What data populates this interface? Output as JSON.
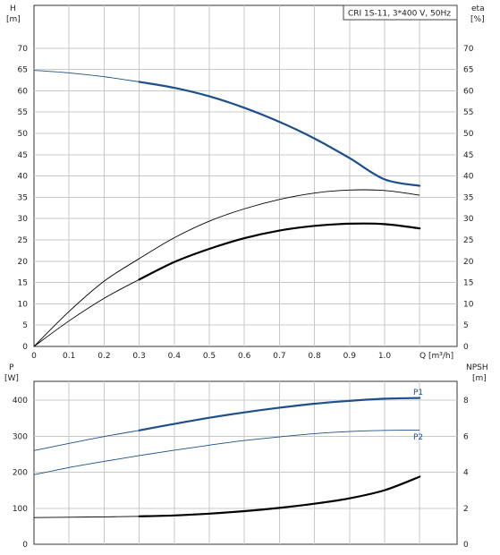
{
  "title": "CRI 1S-11, 3*400 V, 50Hz",
  "colors": {
    "blue": "#1c4f8c",
    "black": "#000000",
    "grid": "#c8c8c8"
  },
  "chart_data": [
    {
      "type": "line",
      "title": "CRI 1S-11, 3*400 V, 50Hz",
      "xlabel": "Q [m³/h]",
      "xlim": [
        0,
        1.1
      ],
      "x_ticks": [
        "0",
        "0.1",
        "0.2",
        "0.3",
        "0.4",
        "0.5",
        "0.6",
        "0.7",
        "0.8",
        "0.9",
        "1.0"
      ],
      "ylabel_left": [
        "H",
        "[m]"
      ],
      "ylim_left": [
        0,
        75
      ],
      "y_ticks_left": [
        "0",
        "5",
        "10",
        "15",
        "20",
        "25",
        "30",
        "35",
        "40",
        "45",
        "50",
        "55",
        "60",
        "65",
        "70"
      ],
      "ylabel_right": [
        "eta",
        "[%]"
      ],
      "ylim_right": [
        0,
        75
      ],
      "y_ticks_right": [
        "0",
        "5",
        "10",
        "15",
        "20",
        "25",
        "30",
        "35",
        "40",
        "45",
        "50",
        "55",
        "60",
        "65",
        "70"
      ],
      "grid": true,
      "series": [
        {
          "axis": "left",
          "color": "#1c4f8c",
          "points": [
            [
              0,
              64.8
            ],
            [
              0.1,
              64.2
            ],
            [
              0.2,
              63.3
            ],
            [
              0.3,
              62.1
            ],
            [
              0.4,
              60.7
            ],
            [
              0.5,
              58.7
            ],
            [
              0.6,
              56.0
            ],
            [
              0.7,
              52.7
            ],
            [
              0.8,
              48.8
            ],
            [
              0.9,
              44.2
            ],
            [
              1.0,
              39.2
            ],
            [
              1.1,
              37.7
            ]
          ],
          "bold_from": 0.3
        },
        {
          "axis": "right",
          "color": "#000000",
          "points": [
            [
              0,
              0
            ],
            [
              0.1,
              8.2
            ],
            [
              0.2,
              15.3
            ],
            [
              0.3,
              20.6
            ],
            [
              0.4,
              25.5
            ],
            [
              0.5,
              29.4
            ],
            [
              0.6,
              32.3
            ],
            [
              0.7,
              34.5
            ],
            [
              0.8,
              36.0
            ],
            [
              0.9,
              36.7
            ],
            [
              1.0,
              36.6
            ],
            [
              1.1,
              35.5
            ]
          ],
          "bold_from": 2
        },
        {
          "axis": "right",
          "color": "#000000",
          "points": [
            [
              0,
              0
            ],
            [
              0.1,
              6.0
            ],
            [
              0.2,
              11.3
            ],
            [
              0.3,
              15.7
            ],
            [
              0.4,
              19.8
            ],
            [
              0.5,
              22.9
            ],
            [
              0.6,
              25.4
            ],
            [
              0.7,
              27.2
            ],
            [
              0.8,
              28.3
            ],
            [
              0.9,
              28.8
            ],
            [
              1.0,
              28.7
            ],
            [
              1.1,
              27.7
            ]
          ],
          "bold_from": 0.3
        }
      ]
    },
    {
      "type": "line",
      "xlim": [
        0,
        1.1
      ],
      "ylabel_left": [
        "P",
        "[W]"
      ],
      "ylim_left": [
        0,
        450
      ],
      "y_ticks_left": [
        "0",
        "100",
        "200",
        "300",
        "400"
      ],
      "ylabel_right": [
        "NPSH",
        "[m]"
      ],
      "ylim_right": [
        0,
        9
      ],
      "y_ticks_right": [
        "0",
        "2",
        "4",
        "6",
        "8"
      ],
      "grid": true,
      "series": [
        {
          "name": "P1",
          "axis": "left",
          "color": "#1c4f8c",
          "points": [
            [
              0,
              260
            ],
            [
              0.1,
              280
            ],
            [
              0.2,
              299
            ],
            [
              0.3,
              316
            ],
            [
              0.4,
              334
            ],
            [
              0.5,
              351
            ],
            [
              0.6,
              366
            ],
            [
              0.7,
              379
            ],
            [
              0.8,
              390
            ],
            [
              0.9,
              398
            ],
            [
              1.0,
              404
            ],
            [
              1.1,
              406
            ]
          ],
          "bold_from": 0.3
        },
        {
          "name": "P2",
          "axis": "left",
          "color": "#1c4f8c",
          "points": [
            [
              0,
              193
            ],
            [
              0.1,
              213
            ],
            [
              0.2,
              230
            ],
            [
              0.3,
              246
            ],
            [
              0.4,
              261
            ],
            [
              0.5,
              275
            ],
            [
              0.6,
              288
            ],
            [
              0.7,
              298
            ],
            [
              0.8,
              307
            ],
            [
              0.9,
              313
            ],
            [
              1.0,
              316
            ],
            [
              1.1,
              317
            ]
          ],
          "bold_from": 2
        },
        {
          "axis": "right",
          "color": "#000000",
          "points": [
            [
              0,
              1.48
            ],
            [
              0.1,
              1.5
            ],
            [
              0.2,
              1.52
            ],
            [
              0.3,
              1.55
            ],
            [
              0.4,
              1.6
            ],
            [
              0.5,
              1.7
            ],
            [
              0.6,
              1.84
            ],
            [
              0.7,
              2.02
            ],
            [
              0.8,
              2.25
            ],
            [
              0.9,
              2.55
            ],
            [
              1.0,
              3.0
            ],
            [
              1.1,
              3.75
            ]
          ],
          "bold_from": 0.3
        }
      ]
    }
  ]
}
